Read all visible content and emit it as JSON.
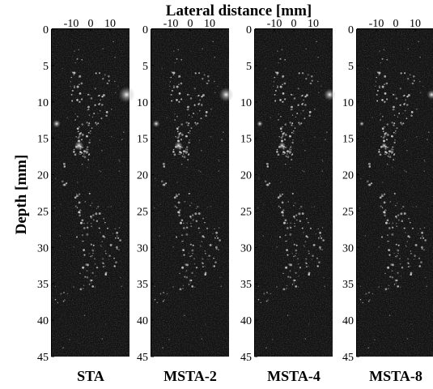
{
  "figure": {
    "top_label": "Lateral distance [mm]",
    "side_label": "Depth [mm]",
    "lateral_ticks": [
      "-10",
      "0",
      "10"
    ],
    "depth_ticks": [
      "0",
      "5",
      "10",
      "15",
      "20",
      "25",
      "30",
      "35",
      "40",
      "45"
    ],
    "depth_range_mm": [
      0,
      45
    ],
    "lateral_range_mm": [
      -20,
      20
    ],
    "panels": [
      {
        "label": "STA"
      },
      {
        "label": "MSTA-2"
      },
      {
        "label": "MSTA-4"
      },
      {
        "label": "MSTA-8"
      }
    ]
  }
}
